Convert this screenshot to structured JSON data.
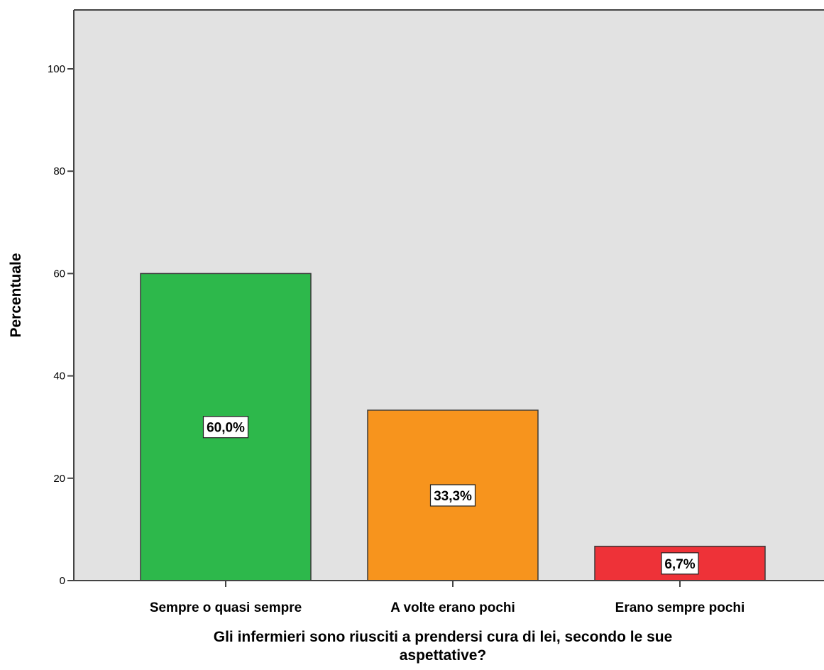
{
  "chart_data": {
    "type": "bar",
    "categories": [
      "Sempre o quasi sempre",
      "A volte erano pochi",
      "Erano sempre pochi"
    ],
    "values": [
      60.0,
      33.3,
      6.7
    ],
    "data_labels": [
      "60,0%",
      "33,3%",
      "6,7%"
    ],
    "colors": [
      "#2db84b",
      "#f7941d",
      "#ee3238"
    ],
    "ylim": [
      0,
      100
    ],
    "yticks": [
      0,
      20,
      40,
      60,
      80,
      100
    ],
    "ytick_labels": [
      "0",
      "20",
      "40",
      "60",
      "80",
      "100"
    ],
    "ylabel": "Percentuale",
    "xlabel_lines": [
      "Gli infermieri sono riusciti a prendersi cura di lei, secondo le sue",
      "aspettative?"
    ],
    "grid": false,
    "legend": "none",
    "plot_background": "#e2e2e2"
  }
}
